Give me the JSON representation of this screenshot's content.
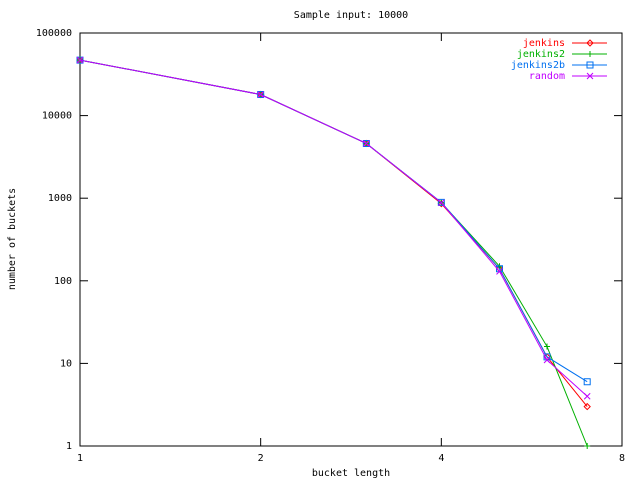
{
  "chart_data": {
    "type": "line",
    "title": "Sample input: 10000",
    "xlabel": "bucket length",
    "ylabel": "number of buckets",
    "x": [
      1,
      2,
      3,
      4,
      5,
      6,
      7
    ],
    "series": [
      {
        "name": "jenkins",
        "color": "#ff0000",
        "marker": "diamond",
        "values": [
          47000,
          18000,
          4600,
          860,
          140,
          12,
          3
        ]
      },
      {
        "name": "jenkins2",
        "color": "#00b000",
        "marker": "plus",
        "values": [
          47000,
          18000,
          4600,
          880,
          150,
          16,
          1
        ]
      },
      {
        "name": "jenkins2b",
        "color": "#0070f0",
        "marker": "square",
        "values": [
          47000,
          18000,
          4600,
          890,
          140,
          12,
          6
        ]
      },
      {
        "name": "random",
        "color": "#c000ff",
        "marker": "cross",
        "values": [
          47000,
          18000,
          4600,
          880,
          130,
          11,
          4
        ]
      }
    ],
    "xlim": [
      1,
      8
    ],
    "ylim": [
      1,
      100000
    ],
    "xticks": [
      1,
      2,
      4,
      8
    ],
    "yticks": [
      1,
      10,
      100,
      1000,
      10000,
      100000
    ],
    "xlog": true,
    "ylog": true,
    "legend": "top-right"
  }
}
